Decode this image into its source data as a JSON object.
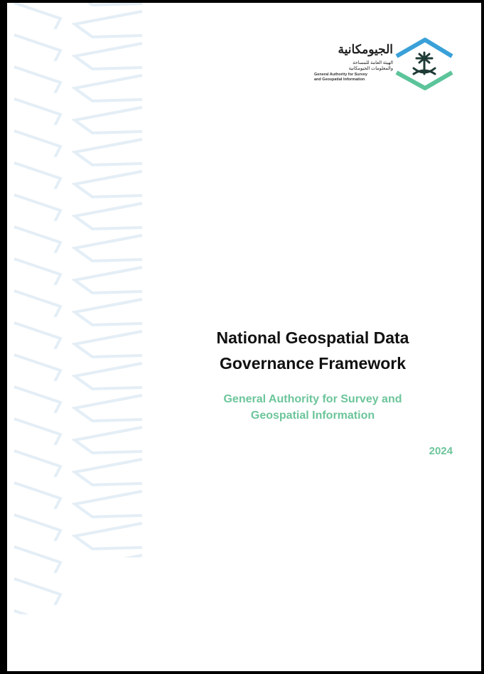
{
  "logo": {
    "arabic_name": "الجيومكانية",
    "arabic_line1": "الهيئة العامة للمساحة",
    "arabic_line2": "والمعلومات الجيومكانية",
    "english_line1": "General Authority for Survey",
    "english_line2": "and Geospatial Information"
  },
  "title": [
    "National Geospatial Data",
    "Governance Framework"
  ],
  "subtitle": [
    "General Authority for Survey and",
    "Geospatial Information"
  ],
  "year": "2024"
}
